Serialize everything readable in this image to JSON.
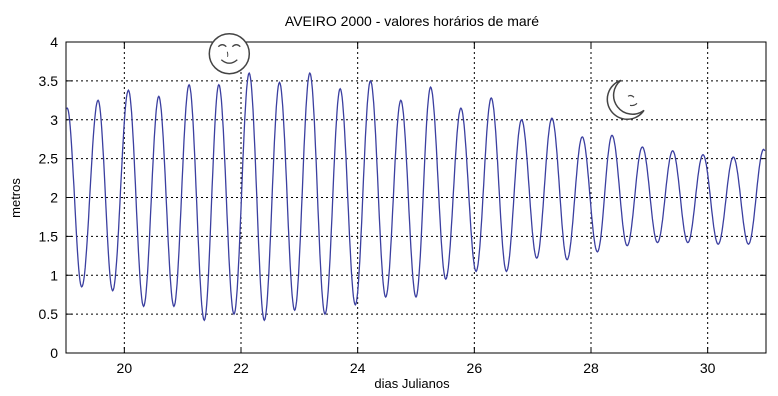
{
  "chart_data": {
    "type": "line",
    "title": "AVEIRO 2000 - valores horários de maré",
    "xlabel": "dias Julianos",
    "ylabel": "metros",
    "xlim": [
      19,
      31
    ],
    "ylim": [
      0,
      4
    ],
    "xticks": [
      "20",
      "22",
      "24",
      "26",
      "28",
      "30"
    ],
    "yticks": [
      "0",
      "0.5",
      "1",
      "1.5",
      "2",
      "2.5",
      "3",
      "3.5",
      "4"
    ],
    "grid": true,
    "series": [
      {
        "color": "#3b3fa0",
        "tidal_period_days": 0.5175,
        "extrema": [
          [
            19.02,
            3.15
          ],
          [
            19.27,
            0.85
          ],
          [
            19.55,
            3.25
          ],
          [
            19.8,
            0.8
          ],
          [
            20.07,
            3.38
          ],
          [
            20.33,
            0.6
          ],
          [
            20.59,
            3.3
          ],
          [
            20.85,
            0.6
          ],
          [
            21.11,
            3.45
          ],
          [
            21.37,
            0.42
          ],
          [
            21.62,
            3.45
          ],
          [
            21.88,
            0.5
          ],
          [
            22.14,
            3.6
          ],
          [
            22.4,
            0.42
          ],
          [
            22.66,
            3.48
          ],
          [
            22.92,
            0.55
          ],
          [
            23.18,
            3.6
          ],
          [
            23.44,
            0.5
          ],
          [
            23.7,
            3.4
          ],
          [
            23.96,
            0.62
          ],
          [
            24.22,
            3.5
          ],
          [
            24.48,
            0.72
          ],
          [
            24.74,
            3.25
          ],
          [
            25.0,
            0.72
          ],
          [
            25.25,
            3.42
          ],
          [
            25.51,
            0.95
          ],
          [
            25.77,
            3.15
          ],
          [
            26.03,
            1.05
          ],
          [
            26.29,
            3.28
          ],
          [
            26.55,
            1.05
          ],
          [
            26.81,
            3.0
          ],
          [
            27.07,
            1.22
          ],
          [
            27.33,
            3.02
          ],
          [
            27.59,
            1.2
          ],
          [
            27.85,
            2.78
          ],
          [
            28.11,
            1.3
          ],
          [
            28.36,
            2.8
          ],
          [
            28.62,
            1.38
          ],
          [
            28.88,
            2.65
          ],
          [
            29.14,
            1.42
          ],
          [
            29.4,
            2.6
          ],
          [
            29.66,
            1.42
          ],
          [
            29.92,
            2.55
          ],
          [
            30.18,
            1.4
          ],
          [
            30.44,
            2.52
          ],
          [
            30.7,
            1.4
          ],
          [
            30.96,
            2.62
          ]
        ]
      }
    ],
    "annotations": [
      {
        "icon": "full-moon-icon",
        "x": 21.8,
        "y": 3.85
      },
      {
        "icon": "crescent-moon-icon",
        "x": 28.6,
        "y": 3.25
      }
    ]
  }
}
